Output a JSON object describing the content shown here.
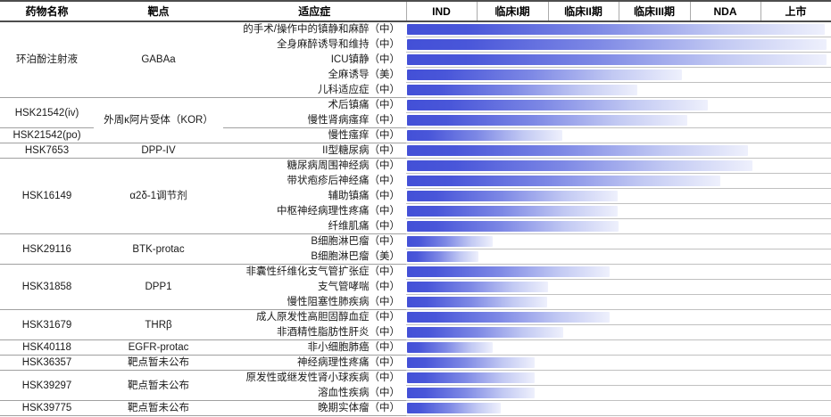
{
  "header": {
    "drug": "药物名称",
    "target": "靶点",
    "indication": "适应症"
  },
  "colors": {
    "bar_stops": [
      "#4350d7",
      "#4956d9",
      "#7d88e5",
      "#c2c9f3",
      "#eef0fc"
    ],
    "bar_stop_positions": [
      0,
      14,
      45,
      75,
      100
    ],
    "group_line": "#a0a0a0",
    "row_line": "#c0c0c0",
    "header_line": "#4d4d4d"
  },
  "chart_data": {
    "type": "table",
    "stages": [
      "IND",
      "临床I期",
      "临床II期",
      "临床III期",
      "NDA",
      "上市"
    ],
    "progress_note": "progress is fraction of full stage axis (IND through 上市)",
    "groups": [
      {
        "drug": "环泊酚注射液",
        "target": "GABAa",
        "target_span": 1,
        "rows": [
          {
            "indication": "的手术/操作中的镇静和麻醉（中）",
            "region": "中",
            "phase": "上市",
            "progress": 0.985
          },
          {
            "indication": "全身麻醉诱导和维持（中）",
            "region": "中",
            "phase": "上市",
            "progress": 0.989
          },
          {
            "indication": "ICU镇静（中）",
            "region": "中",
            "phase": "上市",
            "progress": 0.989
          },
          {
            "indication": "全麻诱导（美）",
            "region": "美",
            "phase": "临床III期",
            "progress": 0.649
          },
          {
            "indication": "儿科适应症（中）",
            "region": "中",
            "phase": "临床III期",
            "progress": 0.543
          }
        ]
      },
      {
        "drug": "HSK21542(iv)",
        "target": "外周κ阿片受体（KOR）",
        "target_span": 2,
        "rows": [
          {
            "indication": "术后镇痛（中）",
            "region": "中",
            "phase": "NDA",
            "progress": 0.709
          },
          {
            "indication": "慢性肾病瘙痒（中）",
            "region": "中",
            "phase": "临床III期",
            "progress": 0.66
          }
        ]
      },
      {
        "drug": "HSK21542(po)",
        "target": null,
        "target_span": 0,
        "rows": [
          {
            "indication": "慢性瘙痒（中）",
            "region": "中",
            "phase": "临床II期",
            "progress": 0.366
          }
        ]
      },
      {
        "drug": "HSK7653",
        "target": "DPP-IV",
        "target_span": 1,
        "rows": [
          {
            "indication": "II型糖尿病（中）",
            "region": "中",
            "phase": "NDA",
            "progress": 0.804
          }
        ]
      },
      {
        "drug": "HSK16149",
        "target": "α2δ-1调节剂",
        "target_span": 1,
        "rows": [
          {
            "indication": "糖尿病周围神经病（中）",
            "region": "中",
            "phase": "NDA",
            "progress": 0.815
          },
          {
            "indication": "带状疱疹后神经痛（中）",
            "region": "中",
            "phase": "NDA",
            "progress": 0.738
          },
          {
            "indication": "辅助镇痛（中）",
            "region": "中",
            "phase": "临床II期",
            "progress": 0.496
          },
          {
            "indication": "中枢神经病理性疼痛（中）",
            "region": "中",
            "phase": "临床II期",
            "progress": 0.496
          },
          {
            "indication": "纤维肌痛（中）",
            "region": "中",
            "phase": "临床II期",
            "progress": 0.498
          }
        ]
      },
      {
        "drug": "HSK29116",
        "target": "BTK-protac",
        "target_span": 1,
        "rows": [
          {
            "indication": "B细胞淋巴瘤（中）",
            "region": "中",
            "phase": "临床I期",
            "progress": 0.202
          },
          {
            "indication": "B细胞淋巴瘤（美）",
            "region": "美",
            "phase": "IND",
            "progress": 0.168
          }
        ]
      },
      {
        "drug": "HSK31858",
        "target": "DPP1",
        "target_span": 1,
        "rows": [
          {
            "indication": "非囊性纤维化支气管扩张症（中）",
            "region": "中",
            "phase": "临床II期",
            "progress": 0.477
          },
          {
            "indication": "支气管哮喘（中）",
            "region": "中",
            "phase": "临床I期",
            "progress": 0.332
          },
          {
            "indication": "慢性阻塞性肺疾病（中）",
            "region": "中",
            "phase": "临床I期",
            "progress": 0.33
          }
        ]
      },
      {
        "drug": "HSK31679",
        "target": "THRβ",
        "target_span": 1,
        "rows": [
          {
            "indication": "成人原发性高胆固醇血症（中）",
            "region": "中",
            "phase": "临床II期",
            "progress": 0.477
          },
          {
            "indication": "非酒精性脂肪性肝炎（中）",
            "region": "中",
            "phase": "临床II期",
            "progress": 0.368
          }
        ]
      },
      {
        "drug": "HSK40118",
        "target": "EGFR-protac",
        "target_span": 1,
        "rows": [
          {
            "indication": "非小细胞肺癌（中）",
            "region": "中",
            "phase": "临床I期",
            "progress": 0.202
          }
        ]
      },
      {
        "drug": "HSK36357",
        "target": "靶点暂未公布",
        "target_span": 1,
        "rows": [
          {
            "indication": "神经病理性疼痛（中）",
            "region": "中",
            "phase": "临床I期",
            "progress": 0.302
          }
        ]
      },
      {
        "drug": "HSK39297",
        "target": "靶点暂未公布",
        "target_span": 1,
        "rows": [
          {
            "indication": "原发性或继发性肾小球疾病（中）",
            "region": "中",
            "phase": "临床I期",
            "progress": 0.302
          },
          {
            "indication": "溶血性疾病（中）",
            "region": "中",
            "phase": "临床I期",
            "progress": 0.302
          }
        ]
      },
      {
        "drug": "HSK39775",
        "target": "靶点暂未公布",
        "target_span": 1,
        "rows": [
          {
            "indication": "晚期实体瘤（中）",
            "region": "中",
            "phase": "临床I期",
            "progress": 0.221
          }
        ]
      }
    ]
  }
}
